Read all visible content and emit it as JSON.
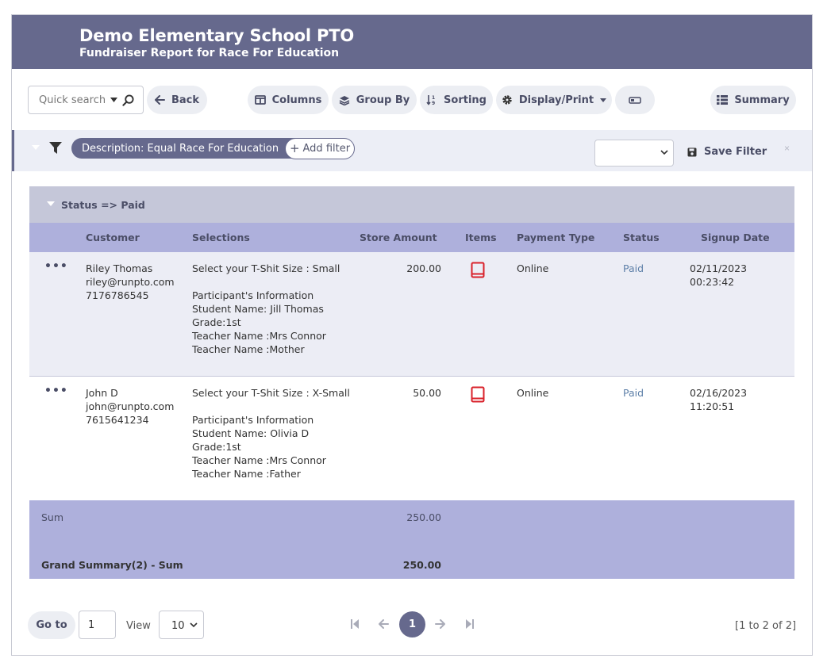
{
  "header": {
    "title": "Demo Elementary School PTO",
    "subtitle": "Fundraiser Report for Race For Education"
  },
  "toolbar": {
    "search_placeholder": "Quick search",
    "back": "Back",
    "columns": "Columns",
    "group_by": "Group By",
    "sorting": "Sorting",
    "display_print": "Display/Print",
    "summary": "Summary"
  },
  "filter": {
    "chip_label": "Description: Equal Race For Education",
    "add_filter": "Add filter",
    "save_filter": "Save Filter"
  },
  "table": {
    "group_label": "Status => Paid",
    "columns": [
      "Customer",
      "Selections",
      "Store Amount",
      "Items",
      "Payment Type",
      "Status",
      "Signup Date"
    ],
    "rows": [
      {
        "customer": [
          "Riley Thomas",
          "riley@runpto.com",
          "7176786545"
        ],
        "selections": [
          "Select your T-Shit Size : Small",
          "",
          "Participant's Information",
          "Student Name: Jill Thomas",
          "Grade:1st",
          "Teacher Name :Mrs Connor",
          "Teacher Name :Mother"
        ],
        "store_amount": "200.00",
        "payment_type": "Online",
        "status": "Paid",
        "signup_date": "02/11/2023 00:23:42"
      },
      {
        "customer": [
          "John D",
          "john@runpto.com",
          "7615641234"
        ],
        "selections": [
          "Select your T-Shit Size : X-Small",
          "",
          "Participant's Information",
          "Student Name: Olivia D",
          "Grade:1st",
          "Teacher Name :Mrs Connor",
          "Teacher Name :Father"
        ],
        "store_amount": "50.00",
        "payment_type": "Online",
        "status": "Paid",
        "signup_date": "02/16/2023 11:20:51"
      }
    ],
    "sum_label": "Sum",
    "sum_value": "250.00",
    "grand_label": "Grand Summary(2) - Sum",
    "grand_value": "250.00"
  },
  "pager": {
    "goto": "Go to",
    "page_value": "1",
    "view_label": "View",
    "view_value": "10",
    "current_page": "1",
    "range": "[1 to 2 of 2]"
  },
  "colors": {
    "header_bg": "#66698d",
    "table_header_bg": "#aeb0dc",
    "group_bg": "#c5c7d9",
    "item_icon": "#d9212a",
    "status_link": "#5d7fa8"
  }
}
